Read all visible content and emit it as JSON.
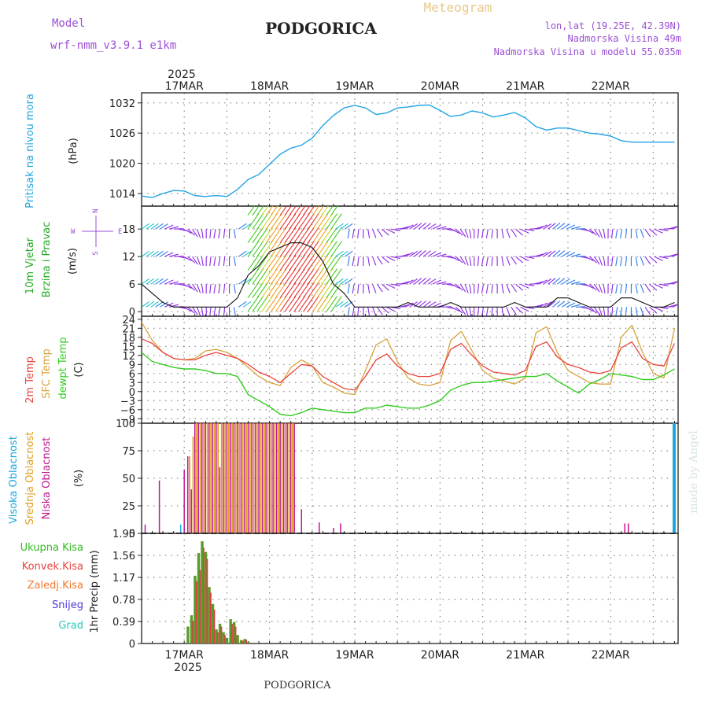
{
  "header": {
    "meteogram_label": "Meteogram",
    "model_label": "Model",
    "model_name": "wrf-nmm_v3.9.1  e1km",
    "station": "PODGORICA",
    "lonlat": "lon,lat (19.25E, 42.39N)",
    "altitude": "Nadmorska Visina 49m",
    "model_altitude": "Nadmorska Visina u modelu 55.035m",
    "footer_station": "PODGORICA",
    "credit": "made by Angel",
    "year": "2025"
  },
  "colors": {
    "pressure": "#22a4e4",
    "temp2m": "#e8453f",
    "sfc": "#d8a33a",
    "dewpt": "#33cc22",
    "high_cloud": "#1aa8e0",
    "mid_cloud": "#e0a020",
    "low_cloud": "#c01890",
    "total_precip": "#5a9a2a",
    "conv_precip": "#d84040",
    "wind_calm": "#8a2be2",
    "model_text": "#9b4fd6",
    "meteogram_text": "#e8c88a"
  },
  "x_axis": {
    "date_ticks": [
      "17MAR",
      "18MAR",
      "19MAR",
      "20MAR",
      "21MAR",
      "22MAR"
    ],
    "range_hours": [
      -12,
      139
    ]
  },
  "chart_data": [
    {
      "type": "line",
      "panel": "pressure",
      "ylabel_lines": [
        "Pritisak na nivou mora",
        "(hPa)"
      ],
      "yticks": [
        1014,
        1020,
        1026,
        1032
      ],
      "ylim": [
        1011.5,
        1034
      ],
      "grid": true,
      "series": [
        {
          "x": [
            -12,
            -9,
            -6,
            -3,
            0,
            3,
            6,
            9,
            12,
            15,
            18,
            21,
            24,
            27,
            30,
            33,
            36,
            39,
            42,
            45,
            48,
            51,
            54,
            57,
            60,
            63,
            66,
            69,
            72,
            75,
            78,
            81,
            84,
            87,
            90,
            93,
            96,
            99,
            102,
            105,
            108,
            111,
            114,
            117,
            120,
            123,
            126,
            129,
            132,
            135,
            138
          ],
          "values": [
            1013.5,
            1013.2,
            1014.0,
            1014.6,
            1014.5,
            1013.6,
            1013.4,
            1013.6,
            1013.4,
            1014.8,
            1016.8,
            1017.8,
            1019.8,
            1021.8,
            1023.0,
            1023.6,
            1025.0,
            1027.5,
            1029.5,
            1031.0,
            1031.5,
            1031.0,
            1029.7,
            1030.0,
            1031.0,
            1031.2,
            1031.5,
            1031.6,
            1030.5,
            1029.3,
            1029.6,
            1030.4,
            1030.0,
            1029.2,
            1029.6,
            1030.1,
            1029.0,
            1027.3,
            1026.6,
            1027.0,
            1027.0,
            1026.5,
            1026.0,
            1025.8,
            1025.4,
            1024.5,
            1024.2,
            1024.2,
            1024.2,
            1024.2,
            1024.2
          ]
        }
      ]
    },
    {
      "type": "line",
      "panel": "wind",
      "ylabel_lines": [
        "10m Vjetar",
        "Brzina i Pravac",
        "(m/s)"
      ],
      "compass": {
        "n": "N",
        "w": "W",
        "e": "E",
        "s": "S"
      },
      "yticks": [
        0,
        6,
        12,
        18
      ],
      "ylim": [
        -1,
        23
      ],
      "grid": true,
      "series": [
        {
          "name": "speed",
          "x": [
            -12,
            -9,
            -6,
            -3,
            0,
            3,
            6,
            9,
            12,
            15,
            18,
            21,
            24,
            27,
            30,
            33,
            36,
            39,
            42,
            45,
            48,
            51,
            54,
            57,
            60,
            63,
            66,
            69,
            72,
            75,
            78,
            81,
            84,
            87,
            90,
            93,
            96,
            99,
            102,
            105,
            108,
            111,
            114,
            117,
            120,
            123,
            126,
            129,
            132,
            135,
            138
          ],
          "values": [
            6,
            4,
            2,
            1,
            1,
            1,
            1,
            1,
            1,
            3,
            8,
            10,
            13,
            14,
            15,
            15,
            14,
            11,
            6,
            4,
            1,
            1,
            1,
            1,
            1,
            2,
            1,
            1,
            1,
            2,
            1,
            1,
            1,
            1,
            1,
            2,
            1,
            1,
            1,
            3,
            3,
            2,
            1,
            1,
            1,
            3,
            3,
            2,
            1,
            1,
            2
          ]
        }
      ]
    },
    {
      "type": "line",
      "panel": "temperature",
      "ylabel_lines": [
        "2m Temp",
        "SFC Temp",
        "dewpt Temp",
        "(C)"
      ],
      "yticks": [
        -9,
        -6,
        -3,
        0,
        3,
        6,
        9,
        12,
        15,
        18,
        21,
        24
      ],
      "ylim": [
        -10.5,
        25
      ],
      "grid": true,
      "series": [
        {
          "name": "2m Temp",
          "x": [
            -12,
            -9,
            -6,
            -3,
            0,
            3,
            6,
            9,
            12,
            15,
            18,
            21,
            24,
            27,
            30,
            33,
            36,
            39,
            42,
            45,
            48,
            51,
            54,
            57,
            60,
            63,
            66,
            69,
            72,
            75,
            78,
            81,
            84,
            87,
            90,
            93,
            96,
            99,
            102,
            105,
            108,
            111,
            114,
            117,
            120,
            123,
            126,
            129,
            132,
            135,
            138
          ],
          "values": [
            17.5,
            16,
            13,
            11,
            10.5,
            10.5,
            12,
            13,
            12,
            11,
            9,
            6.5,
            5,
            3,
            6,
            9,
            8.5,
            5,
            3,
            1,
            0.5,
            5,
            10.5,
            12.5,
            8.5,
            6,
            5,
            5,
            6,
            14,
            16,
            12,
            8.5,
            6.5,
            6,
            5.5,
            7,
            15,
            16.5,
            11.5,
            9,
            8,
            6.5,
            6,
            7,
            14.5,
            16.5,
            11,
            9,
            8.5,
            16
          ]
        },
        {
          "name": "SFC Temp",
          "x": [
            -12,
            -9,
            -6,
            -3,
            0,
            3,
            6,
            9,
            12,
            15,
            18,
            21,
            24,
            27,
            30,
            33,
            36,
            39,
            42,
            45,
            48,
            51,
            54,
            57,
            60,
            63,
            66,
            69,
            72,
            75,
            78,
            81,
            84,
            87,
            90,
            93,
            96,
            99,
            102,
            105,
            108,
            111,
            114,
            117,
            120,
            123,
            126,
            129,
            132,
            135,
            138
          ],
          "values": [
            23,
            17,
            13,
            11,
            10.5,
            11,
            13.5,
            14,
            13,
            11,
            8,
            5,
            3,
            2,
            8,
            10.5,
            8.5,
            3,
            1.5,
            -0.5,
            -1,
            7,
            15.5,
            17.5,
            10,
            4.5,
            2.5,
            2,
            3,
            17,
            20,
            13.5,
            7,
            4.5,
            3.5,
            2.5,
            4.5,
            19.5,
            21.5,
            13,
            7,
            5,
            3,
            2.5,
            2.5,
            18,
            22,
            13,
            6,
            4.5,
            21
          ]
        },
        {
          "name": "dewpt Temp",
          "x": [
            -12,
            -9,
            -6,
            -3,
            0,
            3,
            6,
            9,
            12,
            15,
            18,
            21,
            24,
            27,
            30,
            33,
            36,
            39,
            42,
            45,
            48,
            51,
            54,
            57,
            60,
            63,
            66,
            69,
            72,
            75,
            78,
            81,
            84,
            87,
            90,
            93,
            96,
            99,
            102,
            105,
            108,
            111,
            114,
            117,
            120,
            123,
            126,
            129,
            132,
            135,
            138
          ],
          "values": [
            13,
            10,
            9,
            8,
            7.5,
            7.5,
            7,
            6,
            6,
            5,
            -1,
            -3,
            -5,
            -7.5,
            -8,
            -7,
            -5.5,
            -6,
            -6.5,
            -7,
            -7,
            -5.5,
            -5.5,
            -4.5,
            -5,
            -5.5,
            -5.5,
            -4.5,
            -3,
            0.5,
            2,
            3,
            3,
            3.5,
            4,
            4.5,
            5,
            5,
            6,
            3.5,
            1.5,
            -0.5,
            2.5,
            4,
            6,
            5.5,
            5,
            4,
            4,
            5.5,
            7.5
          ]
        }
      ]
    },
    {
      "type": "bar",
      "panel": "cloud_cover",
      "ylabel_lines": [
        "Visoka Oblacnost",
        "Srednja Oblacnost",
        "Niska Oblacnost",
        "(%)"
      ],
      "yticks": [
        0,
        25,
        50,
        75,
        100
      ],
      "ylim": [
        0,
        100
      ],
      "grid": true,
      "series": [
        {
          "name": "Niska Oblacnost",
          "x": [
            -11,
            -7,
            0,
            1,
            2,
            3,
            4,
            5,
            6,
            7,
            8,
            9,
            10,
            11,
            12,
            13,
            14,
            15,
            16,
            17,
            18,
            19,
            20,
            21,
            22,
            23,
            24,
            25,
            26,
            27,
            28,
            29,
            30,
            31,
            33,
            38,
            42,
            44,
            124,
            125
          ],
          "values": [
            8,
            48,
            58,
            70,
            40,
            100,
            100,
            100,
            100,
            100,
            100,
            100,
            60,
            100,
            100,
            100,
            100,
            100,
            100,
            100,
            100,
            100,
            100,
            100,
            100,
            100,
            100,
            100,
            100,
            100,
            100,
            100,
            100,
            100,
            22,
            10,
            5,
            9,
            9,
            9
          ]
        },
        {
          "name": "Srednja Oblacnost",
          "x": [
            2,
            3,
            4,
            5,
            6,
            7,
            8,
            9,
            10,
            11,
            12,
            13,
            14,
            15,
            16,
            17,
            18,
            19,
            20,
            21,
            22,
            23,
            24,
            25,
            26,
            27,
            28,
            29,
            30,
            31
          ],
          "values": [
            70,
            88,
            100,
            100,
            100,
            100,
            100,
            100,
            100,
            100,
            100,
            100,
            100,
            100,
            100,
            100,
            100,
            100,
            100,
            100,
            100,
            100,
            100,
            100,
            100,
            100,
            100,
            100,
            100,
            100
          ]
        },
        {
          "name": "Visoka Oblacnost",
          "x": [
            -1,
            138
          ],
          "values": [
            8,
            100
          ]
        }
      ]
    },
    {
      "type": "bar",
      "panel": "precipitation",
      "ylabel_lines": [
        "Ukupna Kisa",
        "Konvek.Kisa",
        "Zaledj.Kisa",
        "Snijeg",
        "Grad",
        "1hr Precip (mm)"
      ],
      "yticks": [
        0,
        0.39,
        0.78,
        1.17,
        1.56,
        1.95
      ],
      "ylim": [
        0,
        1.95
      ],
      "grid": true,
      "series": [
        {
          "name": "Ukupna Kisa",
          "x": [
            1,
            2,
            3,
            4,
            5,
            6,
            7,
            8,
            9,
            10,
            11,
            12,
            13,
            14,
            15,
            16,
            17,
            18
          ],
          "values": [
            0.3,
            0.5,
            1.2,
            1.6,
            1.81,
            1.62,
            1.0,
            0.7,
            0.25,
            0.35,
            0.2,
            0.1,
            0.43,
            0.38,
            0.15,
            0.06,
            0.08,
            0.03
          ]
        },
        {
          "name": "Konvek.Kisa",
          "x": [
            2,
            3,
            4,
            5,
            6,
            7,
            8,
            9,
            10,
            11,
            13,
            14,
            16,
            17
          ],
          "values": [
            0.4,
            1.1,
            1.3,
            1.7,
            1.5,
            0.9,
            0.6,
            0.2,
            0.3,
            0.15,
            0.35,
            0.3,
            0.05,
            0.07
          ]
        }
      ]
    }
  ]
}
